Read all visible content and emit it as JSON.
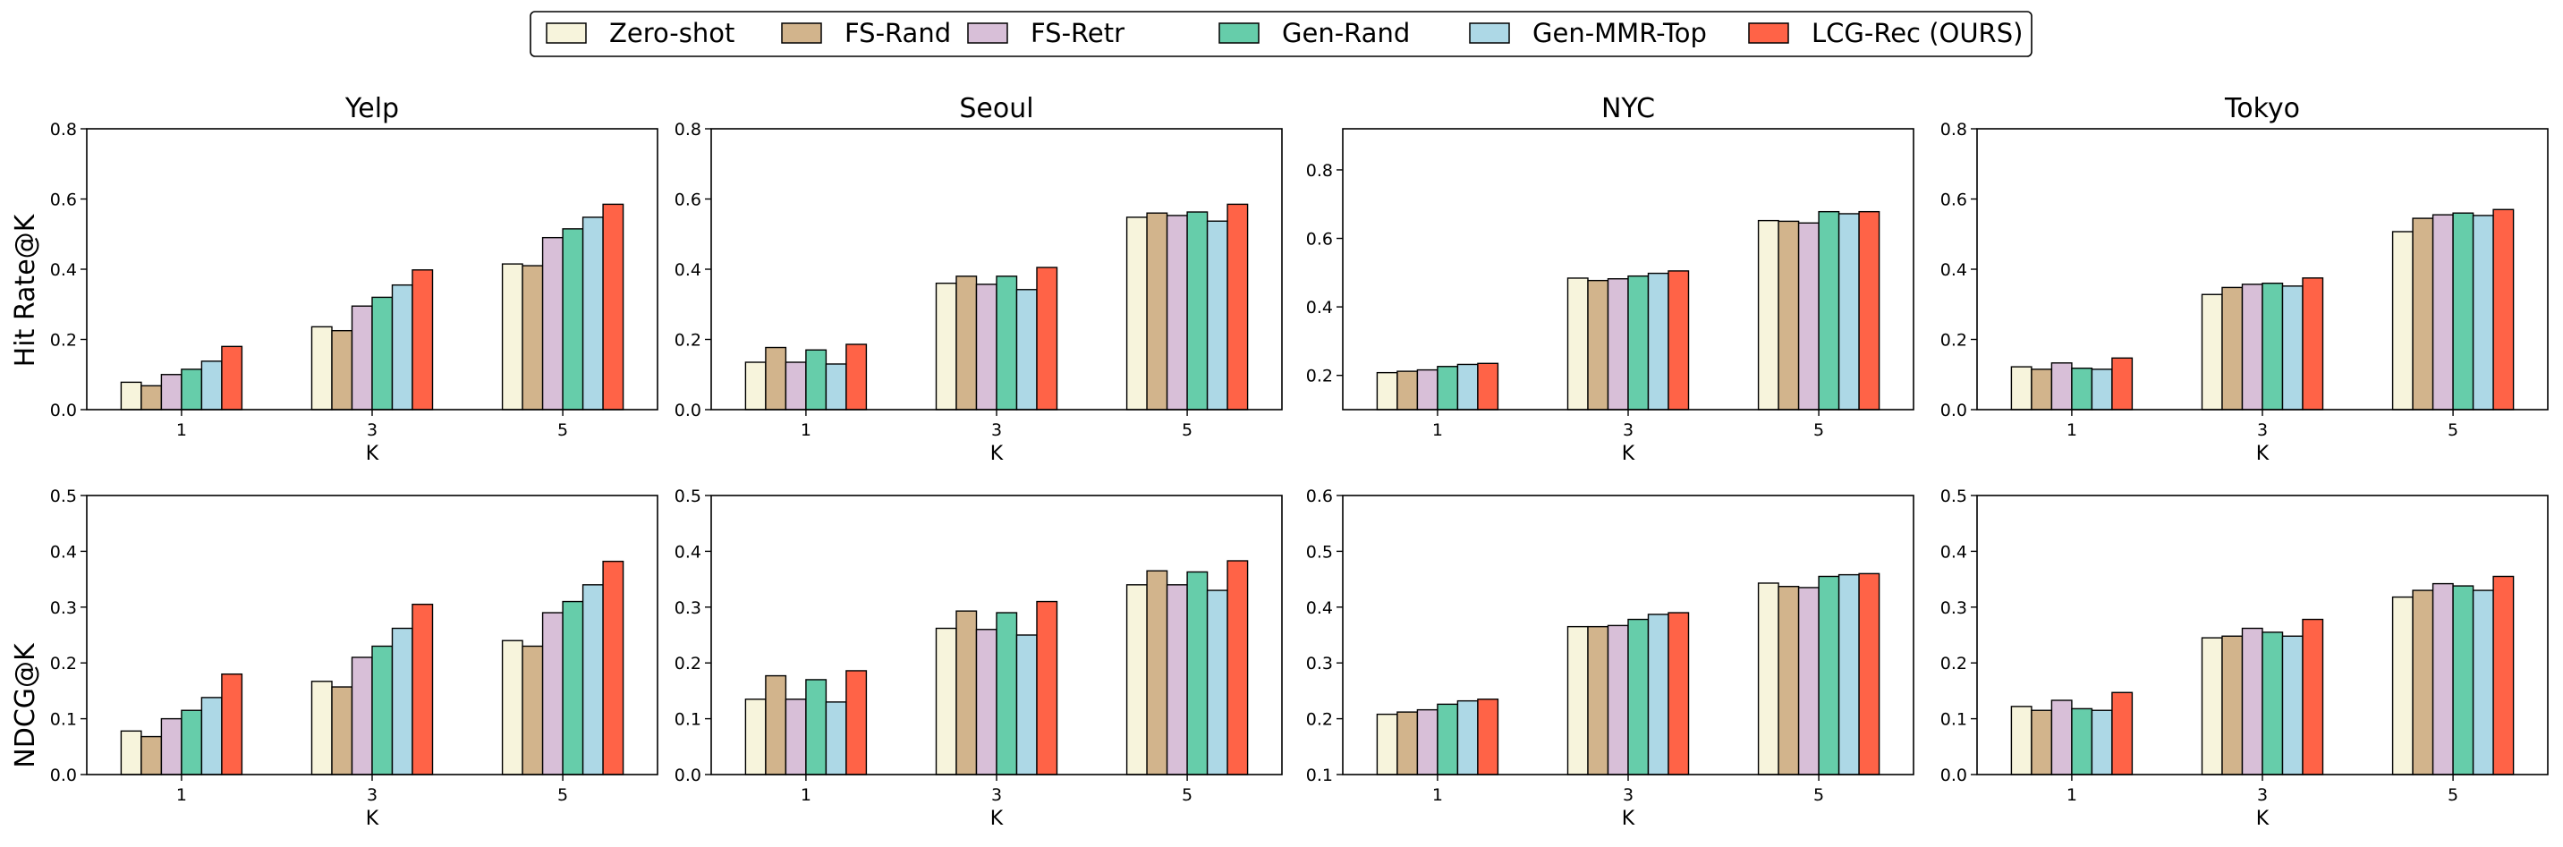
{
  "legend": {
    "items": [
      {
        "label": "Zero-shot",
        "color": "#f7f4dc"
      },
      {
        "label": "FS-Rand",
        "color": "#d2b48c"
      },
      {
        "label": "FS-Retr",
        "color": "#d8bfd8"
      },
      {
        "label": "Gen-Rand",
        "color": "#66cdaa"
      },
      {
        "label": "Gen-MMR-Top",
        "color": "#add8e6"
      },
      {
        "label": "LCG-Rec (OURS)",
        "color": "#ff6347"
      }
    ]
  },
  "row_labels": [
    "Hit Rate@K",
    "NDCG@K"
  ],
  "chart_data": [
    {
      "type": "bar",
      "title": "Yelp",
      "xlabel": "K",
      "ylabel": "Hit Rate@K",
      "categories": [
        "1",
        "3",
        "5"
      ],
      "ylim": [
        0,
        0.8
      ],
      "yticks": [
        "0.0",
        "0.2",
        "0.4",
        "0.6",
        "0.8"
      ],
      "series": [
        {
          "name": "Zero-shot",
          "values": [
            0.078,
            0.236,
            0.415
          ]
        },
        {
          "name": "FS-Rand",
          "values": [
            0.068,
            0.225,
            0.41
          ]
        },
        {
          "name": "FS-Retr",
          "values": [
            0.1,
            0.295,
            0.49
          ]
        },
        {
          "name": "Gen-Rand",
          "values": [
            0.115,
            0.32,
            0.515
          ]
        },
        {
          "name": "Gen-MMR-Top",
          "values": [
            0.138,
            0.355,
            0.548
          ]
        },
        {
          "name": "LCG-Rec (OURS)",
          "values": [
            0.18,
            0.398,
            0.585
          ]
        }
      ]
    },
    {
      "type": "bar",
      "title": "Seoul",
      "xlabel": "K",
      "ylabel": "Hit Rate@K",
      "categories": [
        "1",
        "3",
        "5"
      ],
      "ylim": [
        0,
        0.8
      ],
      "yticks": [
        "0.0",
        "0.2",
        "0.4",
        "0.6",
        "0.8"
      ],
      "series": [
        {
          "name": "Zero-shot",
          "values": [
            0.135,
            0.36,
            0.548
          ]
        },
        {
          "name": "FS-Rand",
          "values": [
            0.177,
            0.38,
            0.56
          ]
        },
        {
          "name": "FS-Retr",
          "values": [
            0.135,
            0.357,
            0.553
          ]
        },
        {
          "name": "Gen-Rand",
          "values": [
            0.17,
            0.38,
            0.563
          ]
        },
        {
          "name": "Gen-MMR-Top",
          "values": [
            0.13,
            0.342,
            0.537
          ]
        },
        {
          "name": "LCG-Rec (OURS)",
          "values": [
            0.186,
            0.405,
            0.585
          ]
        }
      ]
    },
    {
      "type": "bar",
      "title": "NYC",
      "xlabel": "K",
      "ylabel": "Hit Rate@K",
      "categories": [
        "1",
        "3",
        "5"
      ],
      "ylim": [
        0.1,
        0.92
      ],
      "yticks": [
        "0.2",
        "0.4",
        "0.6",
        "0.8"
      ],
      "series": [
        {
          "name": "Zero-shot",
          "values": [
            0.208,
            0.484,
            0.652
          ]
        },
        {
          "name": "FS-Rand",
          "values": [
            0.212,
            0.477,
            0.65
          ]
        },
        {
          "name": "FS-Retr",
          "values": [
            0.216,
            0.482,
            0.645
          ]
        },
        {
          "name": "Gen-Rand",
          "values": [
            0.226,
            0.49,
            0.678
          ]
        },
        {
          "name": "Gen-MMR-Top",
          "values": [
            0.232,
            0.498,
            0.672
          ]
        },
        {
          "name": "LCG-Rec (OURS)",
          "values": [
            0.235,
            0.505,
            0.678
          ]
        }
      ]
    },
    {
      "type": "bar",
      "title": "Tokyo",
      "xlabel": "K",
      "ylabel": "Hit Rate@K",
      "categories": [
        "1",
        "3",
        "5"
      ],
      "ylim": [
        0,
        0.8
      ],
      "yticks": [
        "0.0",
        "0.2",
        "0.4",
        "0.6",
        "0.8"
      ],
      "series": [
        {
          "name": "Zero-shot",
          "values": [
            0.122,
            0.328,
            0.507
          ]
        },
        {
          "name": "FS-Rand",
          "values": [
            0.115,
            0.348,
            0.545
          ]
        },
        {
          "name": "FS-Retr",
          "values": [
            0.133,
            0.357,
            0.555
          ]
        },
        {
          "name": "Gen-Rand",
          "values": [
            0.118,
            0.36,
            0.56
          ]
        },
        {
          "name": "Gen-MMR-Top",
          "values": [
            0.115,
            0.352,
            0.553
          ]
        },
        {
          "name": "LCG-Rec (OURS)",
          "values": [
            0.147,
            0.375,
            0.57
          ]
        }
      ]
    },
    {
      "type": "bar",
      "title": "",
      "xlabel": "K",
      "ylabel": "NDCG@K",
      "categories": [
        "1",
        "3",
        "5"
      ],
      "ylim": [
        0,
        0.5
      ],
      "yticks": [
        "0.0",
        "0.1",
        "0.2",
        "0.3",
        "0.4",
        "0.5"
      ],
      "series": [
        {
          "name": "Zero-shot",
          "values": [
            0.078,
            0.167,
            0.24
          ]
        },
        {
          "name": "FS-Rand",
          "values": [
            0.068,
            0.157,
            0.23
          ]
        },
        {
          "name": "FS-Retr",
          "values": [
            0.1,
            0.21,
            0.29
          ]
        },
        {
          "name": "Gen-Rand",
          "values": [
            0.115,
            0.23,
            0.31
          ]
        },
        {
          "name": "Gen-MMR-Top",
          "values": [
            0.138,
            0.262,
            0.34
          ]
        },
        {
          "name": "LCG-Rec (OURS)",
          "values": [
            0.18,
            0.305,
            0.382
          ]
        }
      ]
    },
    {
      "type": "bar",
      "title": "",
      "xlabel": "K",
      "ylabel": "NDCG@K",
      "categories": [
        "1",
        "3",
        "5"
      ],
      "ylim": [
        0,
        0.5
      ],
      "yticks": [
        "0.0",
        "0.1",
        "0.2",
        "0.3",
        "0.4",
        "0.5"
      ],
      "series": [
        {
          "name": "Zero-shot",
          "values": [
            0.135,
            0.262,
            0.34
          ]
        },
        {
          "name": "FS-Rand",
          "values": [
            0.177,
            0.293,
            0.365
          ]
        },
        {
          "name": "FS-Retr",
          "values": [
            0.135,
            0.26,
            0.34
          ]
        },
        {
          "name": "Gen-Rand",
          "values": [
            0.17,
            0.29,
            0.363
          ]
        },
        {
          "name": "Gen-MMR-Top",
          "values": [
            0.13,
            0.25,
            0.33
          ]
        },
        {
          "name": "LCG-Rec (OURS)",
          "values": [
            0.186,
            0.31,
            0.383
          ]
        }
      ]
    },
    {
      "type": "bar",
      "title": "",
      "xlabel": "K",
      "ylabel": "NDCG@K",
      "categories": [
        "1",
        "3",
        "5"
      ],
      "ylim": [
        0.1,
        0.6
      ],
      "yticks": [
        "0.1",
        "0.2",
        "0.3",
        "0.4",
        "0.5",
        "0.6"
      ],
      "series": [
        {
          "name": "Zero-shot",
          "values": [
            0.208,
            0.365,
            0.443
          ]
        },
        {
          "name": "FS-Rand",
          "values": [
            0.212,
            0.365,
            0.437
          ]
        },
        {
          "name": "FS-Retr",
          "values": [
            0.216,
            0.367,
            0.435
          ]
        },
        {
          "name": "Gen-Rand",
          "values": [
            0.226,
            0.378,
            0.455
          ]
        },
        {
          "name": "Gen-MMR-Top",
          "values": [
            0.232,
            0.387,
            0.458
          ]
        },
        {
          "name": "LCG-Rec (OURS)",
          "values": [
            0.235,
            0.39,
            0.46
          ]
        }
      ]
    },
    {
      "type": "bar",
      "title": "",
      "xlabel": "K",
      "ylabel": "NDCG@K",
      "categories": [
        "1",
        "3",
        "5"
      ],
      "ylim": [
        0,
        0.5
      ],
      "yticks": [
        "0.0",
        "0.1",
        "0.2",
        "0.3",
        "0.4",
        "0.5"
      ],
      "series": [
        {
          "name": "Zero-shot",
          "values": [
            0.122,
            0.245,
            0.318
          ]
        },
        {
          "name": "FS-Rand",
          "values": [
            0.115,
            0.248,
            0.33
          ]
        },
        {
          "name": "FS-Retr",
          "values": [
            0.133,
            0.262,
            0.342
          ]
        },
        {
          "name": "Gen-Rand",
          "values": [
            0.118,
            0.255,
            0.338
          ]
        },
        {
          "name": "Gen-MMR-Top",
          "values": [
            0.115,
            0.248,
            0.33
          ]
        },
        {
          "name": "LCG-Rec (OURS)",
          "values": [
            0.147,
            0.278,
            0.355
          ]
        }
      ]
    }
  ]
}
